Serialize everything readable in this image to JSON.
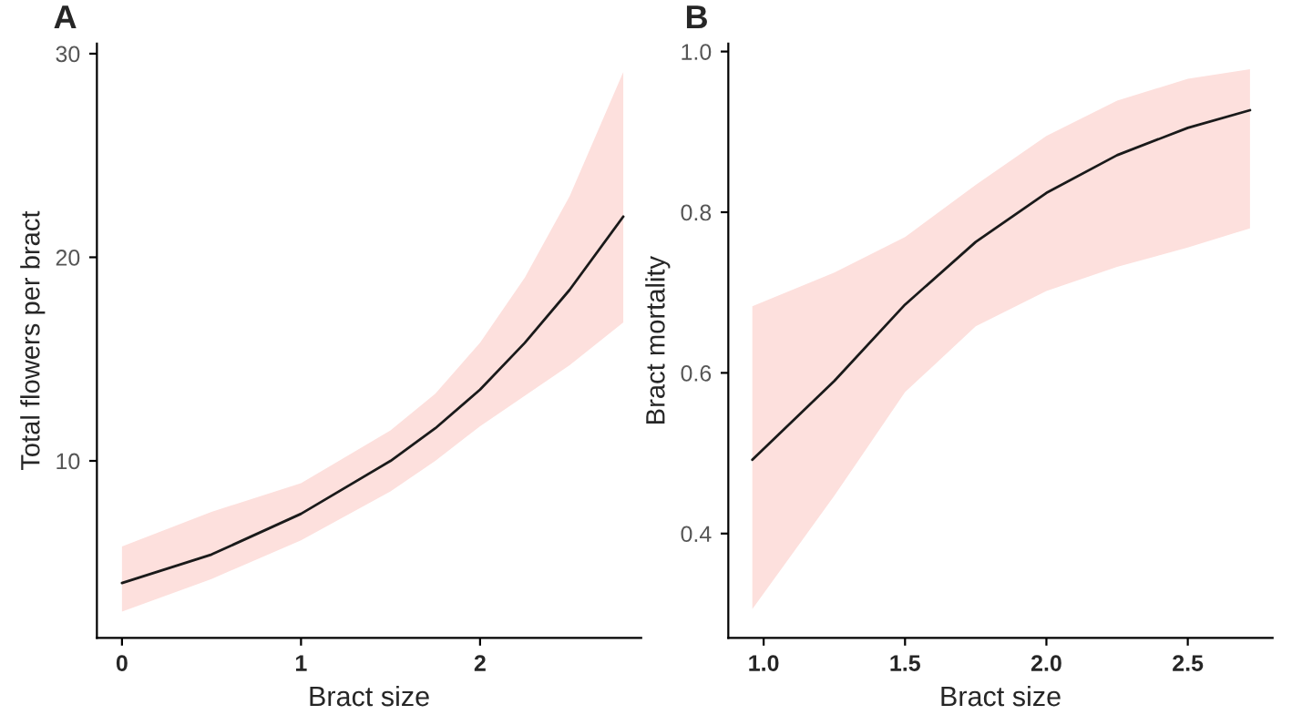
{
  "chart_data": [
    {
      "type": "line",
      "title": "A",
      "xlabel": "Bract size",
      "ylabel": "Total flowers per bract",
      "xlim": [
        -0.14,
        2.9
      ],
      "ylim": [
        1.3,
        30.5
      ],
      "xticks": [
        0,
        1,
        2
      ],
      "yticks": [
        10,
        20,
        30
      ],
      "grid": false,
      "legend": false,
      "series": [
        {
          "color": "#1a1a1a",
          "x": [
            0,
            0.5,
            1,
            1.5,
            1.75,
            2,
            2.25,
            2.5,
            2.8
          ],
          "values": [
            4.0,
            5.4,
            7.4,
            10.0,
            11.6,
            13.5,
            15.8,
            18.4,
            22.0
          ],
          "lower": [
            2.6,
            4.2,
            6.1,
            8.5,
            10.0,
            11.7,
            13.2,
            14.7,
            16.8
          ],
          "upper": [
            5.8,
            7.5,
            8.9,
            11.5,
            13.3,
            15.8,
            19.0,
            23.0,
            29.1
          ]
        }
      ]
    },
    {
      "type": "line",
      "title": "B",
      "xlabel": "Bract size",
      "ylabel": "Bract mortality",
      "xlim": [
        0.875,
        2.8
      ],
      "ylim": [
        0.27,
        1.01
      ],
      "xticks": [
        {
          "value": 1.0,
          "label": "1.0"
        },
        1.5,
        {
          "value": 2.0,
          "label": "2.0"
        },
        2.5
      ],
      "yticks": [
        0.4,
        0.6,
        0.8,
        {
          "value": 1.0,
          "label": "1.0"
        }
      ],
      "grid": false,
      "legend": false,
      "series": [
        {
          "color": "#1a1a1a",
          "x": [
            0.96,
            1.25,
            1.5,
            1.75,
            2.0,
            2.25,
            2.5,
            2.72
          ],
          "values": [
            0.492,
            0.59,
            0.685,
            0.763,
            0.824,
            0.871,
            0.905,
            0.927
          ],
          "lower": [
            0.306,
            0.447,
            0.576,
            0.658,
            0.702,
            0.732,
            0.756,
            0.78
          ],
          "upper": [
            0.683,
            0.725,
            0.769,
            0.834,
            0.895,
            0.939,
            0.966,
            0.978
          ]
        }
      ]
    }
  ]
}
